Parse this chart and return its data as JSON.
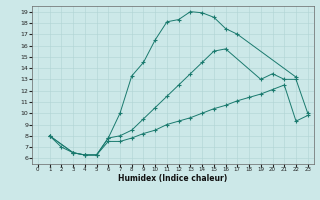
{
  "xlabel": "Humidex (Indice chaleur)",
  "bg_color": "#cce8e8",
  "line_color": "#1a7a6e",
  "xlim": [
    -0.5,
    23.5
  ],
  "ylim": [
    5.5,
    19.5
  ],
  "xticks": [
    0,
    1,
    2,
    3,
    4,
    5,
    6,
    7,
    8,
    9,
    10,
    11,
    12,
    13,
    14,
    15,
    16,
    17,
    18,
    19,
    20,
    21,
    22,
    23
  ],
  "yticks": [
    6,
    7,
    8,
    9,
    10,
    11,
    12,
    13,
    14,
    15,
    16,
    17,
    18,
    19
  ],
  "curve1_x": [
    1,
    2,
    3,
    4,
    5,
    6,
    7,
    8,
    9,
    10,
    11,
    12,
    13,
    14,
    15,
    16,
    17,
    22
  ],
  "curve1_y": [
    8,
    7,
    6.5,
    6.3,
    6.3,
    7.8,
    10,
    13.3,
    14.5,
    16.5,
    18.1,
    18.3,
    19.0,
    18.9,
    18.5,
    17.5,
    17.0,
    13.2
  ],
  "curve2_x": [
    1,
    3,
    4,
    5,
    6,
    7,
    8,
    9,
    10,
    11,
    12,
    13,
    14,
    15,
    16,
    19,
    20,
    21,
    22,
    23
  ],
  "curve2_y": [
    8,
    6.5,
    6.3,
    6.3,
    7.8,
    8.0,
    8.5,
    9.5,
    10.5,
    11.5,
    12.5,
    13.5,
    14.5,
    15.5,
    15.7,
    13.0,
    13.5,
    13.0,
    13.0,
    10.0
  ],
  "curve3_x": [
    1,
    3,
    4,
    5,
    6,
    7,
    8,
    9,
    10,
    11,
    12,
    13,
    14,
    15,
    16,
    17,
    18,
    19,
    20,
    21,
    22,
    23
  ],
  "curve3_y": [
    8,
    6.5,
    6.3,
    6.3,
    7.5,
    7.5,
    7.8,
    8.2,
    8.5,
    9.0,
    9.3,
    9.6,
    10.0,
    10.4,
    10.7,
    11.1,
    11.4,
    11.7,
    12.1,
    12.5,
    9.3,
    9.8
  ]
}
